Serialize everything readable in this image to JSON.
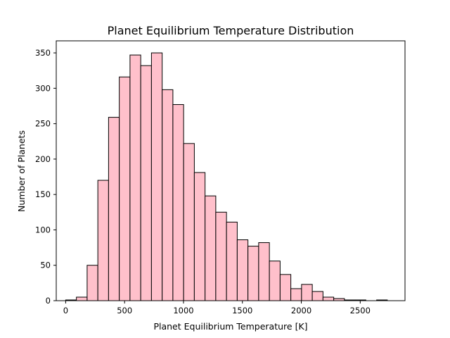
{
  "chart_data": {
    "type": "bar",
    "title": "Planet Equilibrium Temperature Distribution",
    "xlabel": "Planet Equilibrium Temperature [K]",
    "ylabel": "Number of Planets",
    "xlim": [
      -80,
      2880
    ],
    "ylim": [
      0,
      367
    ],
    "xticks": [
      0,
      500,
      1000,
      1500,
      2000,
      2500
    ],
    "yticks": [
      0,
      50,
      100,
      150,
      200,
      250,
      300,
      350
    ],
    "bin_edges": [
      0,
      91,
      182,
      273,
      364,
      455,
      546,
      637,
      728,
      819,
      910,
      1001,
      1092,
      1183,
      1274,
      1365,
      1456,
      1547,
      1638,
      1729,
      1820,
      1911,
      2002,
      2093,
      2184,
      2275,
      2366,
      2457,
      2548,
      2639,
      2730
    ],
    "values": [
      1,
      5,
      50,
      170,
      259,
      316,
      347,
      332,
      350,
      298,
      277,
      222,
      181,
      148,
      125,
      111,
      86,
      77,
      82,
      56,
      37,
      17,
      23,
      13,
      5,
      3,
      1,
      1,
      0,
      1
    ],
    "bar_color": "#ffc0cb",
    "edge_color": "#000000",
    "grid": false
  }
}
